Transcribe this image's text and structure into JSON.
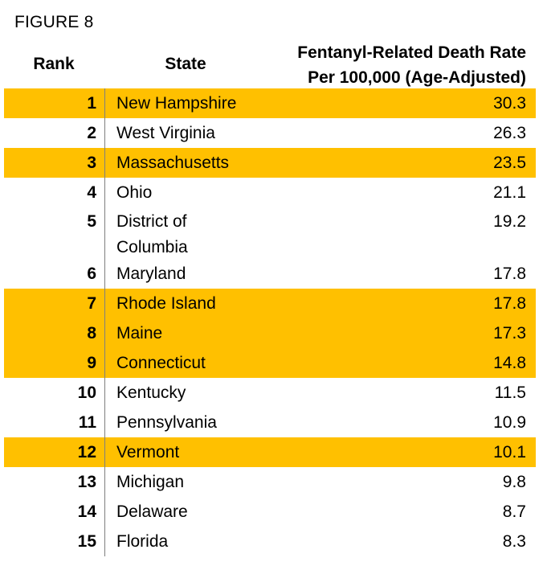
{
  "figure_label": "FIGURE 8",
  "headers": {
    "rank": "Rank",
    "state": "State",
    "rate_line1": "Fentanyl-Related Death Rate",
    "rate_line2": "Per 100,000 (Age-Adjusted)"
  },
  "highlight_color": "#FFC000",
  "rows": [
    {
      "rank": "1",
      "state": "New Hampshire",
      "rate": "30.3",
      "highlighted": true
    },
    {
      "rank": "2",
      "state": "West Virginia",
      "rate": "26.3",
      "highlighted": false
    },
    {
      "rank": "3",
      "state": "Massachusetts",
      "rate": "23.5",
      "highlighted": true
    },
    {
      "rank": "4",
      "state": "Ohio",
      "rate": "21.1",
      "highlighted": false
    },
    {
      "rank": "5",
      "state": "District of Columbia",
      "state_line1": "District of",
      "state_line2": "Columbia",
      "rate": "19.2",
      "highlighted": false
    },
    {
      "rank": "6",
      "state": "Maryland",
      "rate": "17.8",
      "highlighted": false
    },
    {
      "rank": "7",
      "state": "Rhode Island",
      "rate": "17.8",
      "highlighted": true
    },
    {
      "rank": "8",
      "state": "Maine",
      "rate": "17.3",
      "highlighted": true
    },
    {
      "rank": "9",
      "state": "Connecticut",
      "rate": "14.8",
      "highlighted": true
    },
    {
      "rank": "10",
      "state": "Kentucky",
      "rate": "11.5",
      "highlighted": false
    },
    {
      "rank": "11",
      "state": "Pennsylvania",
      "rate": "10.9",
      "highlighted": false
    },
    {
      "rank": "12",
      "state": "Vermont",
      "rate": "10.1",
      "highlighted": true
    },
    {
      "rank": "13",
      "state": "Michigan",
      "rate": "9.8",
      "highlighted": false
    },
    {
      "rank": "14",
      "state": "Delaware",
      "rate": "8.7",
      "highlighted": false
    },
    {
      "rank": "15",
      "state": "Florida",
      "rate": "8.3",
      "highlighted": false
    }
  ]
}
